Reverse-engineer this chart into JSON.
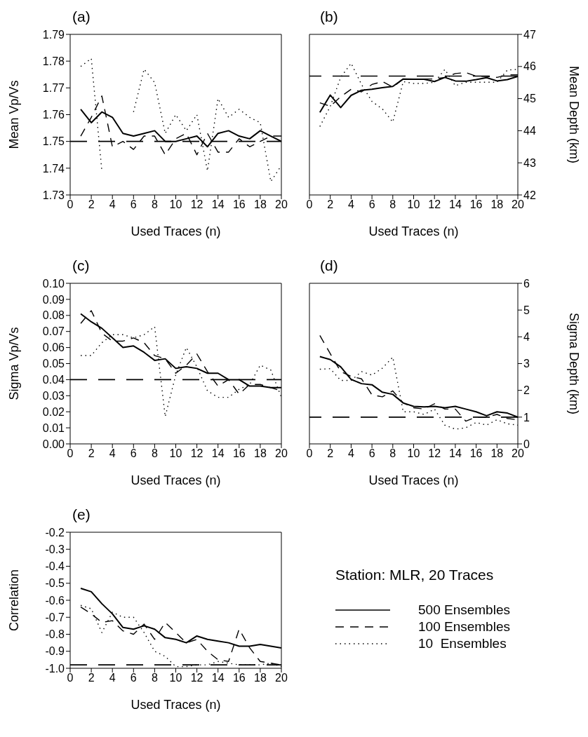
{
  "chart_data": [
    {
      "type": "line",
      "title": "(a)",
      "xlabel": "Used Traces (n)",
      "ylabel": "Mean Vp/Vs",
      "x": [
        1,
        2,
        3,
        4,
        5,
        6,
        7,
        8,
        9,
        10,
        11,
        12,
        13,
        14,
        15,
        16,
        17,
        18,
        19,
        20
      ],
      "xlim": [
        0,
        20
      ],
      "xticks": [
        0,
        2,
        4,
        6,
        8,
        10,
        12,
        14,
        16,
        18,
        20
      ],
      "ylim": [
        1.73,
        1.79
      ],
      "yticks": [
        1.73,
        1.74,
        1.75,
        1.76,
        1.77,
        1.78,
        1.79
      ],
      "series": [
        {
          "color": "#000000",
          "line_style": "solid",
          "values": [
            1.762,
            1.757,
            1.761,
            1.759,
            1.753,
            1.752,
            1.753,
            1.754,
            1.75,
            1.75,
            1.751,
            1.752,
            1.748,
            1.753,
            1.754,
            1.752,
            1.751,
            1.754,
            1.752,
            1.75
          ]
        },
        {
          "color": "#000000",
          "line_style": "dashed",
          "values": [
            1.752,
            1.759,
            1.767,
            1.748,
            1.75,
            1.747,
            1.752,
            1.752,
            1.745,
            1.751,
            1.753,
            1.745,
            1.753,
            1.746,
            1.746,
            1.751,
            1.748,
            1.75,
            1.752,
            1.752
          ]
        },
        {
          "color": "#000000",
          "line_style": "dotted",
          "values": [
            1.778,
            1.781,
            1.739,
            null,
            null,
            1.761,
            1.777,
            1.772,
            1.753,
            1.76,
            1.754,
            1.76,
            1.739,
            1.766,
            1.759,
            1.762,
            1.759,
            1.757,
            1.735,
            1.741
          ]
        }
      ],
      "ref_lines": [
        {
          "axis": "y",
          "value": 1.75,
          "color": "#000000",
          "line_style": "dashed"
        }
      ]
    },
    {
      "type": "line",
      "title": "(b)",
      "xlabel": "Used Traces (n)",
      "y2label": "Mean Depth (km)",
      "x": [
        1,
        2,
        3,
        4,
        5,
        6,
        7,
        8,
        9,
        10,
        11,
        12,
        13,
        14,
        15,
        16,
        17,
        18,
        19,
        20
      ],
      "xlim": [
        0,
        20
      ],
      "xticks": [
        0,
        2,
        4,
        6,
        8,
        10,
        12,
        14,
        16,
        18,
        20
      ],
      "y2lim": [
        42,
        47
      ],
      "y2ticks": [
        42,
        43,
        44,
        45,
        46,
        47
      ],
      "series": [
        {
          "color": "#000000",
          "line_style": "solid",
          "axis": "y2",
          "values": [
            44.57,
            45.11,
            44.72,
            45.1,
            45.26,
            45.29,
            45.34,
            45.38,
            45.61,
            45.6,
            45.6,
            45.53,
            45.66,
            45.55,
            45.54,
            45.59,
            45.65,
            45.55,
            45.59,
            45.69
          ]
        },
        {
          "color": "#000000",
          "line_style": "dashed",
          "axis": "y2",
          "values": [
            44.87,
            44.76,
            45.06,
            45.29,
            45.21,
            45.44,
            45.53,
            45.36,
            45.61,
            45.61,
            45.61,
            45.61,
            45.66,
            45.78,
            45.81,
            45.7,
            45.69,
            45.66,
            45.74,
            45.74
          ]
        },
        {
          "color": "#000000",
          "line_style": "dotted",
          "axis": "y2",
          "values": [
            44.13,
            44.76,
            45.66,
            46.1,
            45.44,
            44.91,
            44.68,
            44.27,
            45.53,
            45.47,
            45.47,
            45.51,
            45.91,
            45.4,
            45.51,
            45.51,
            45.51,
            45.51,
            45.89,
            45.91
          ]
        }
      ],
      "ref_lines": [
        {
          "axis": "y2",
          "value": 45.7,
          "color": "#000000",
          "line_style": "dashed"
        }
      ]
    },
    {
      "type": "line",
      "title": "(c)",
      "xlabel": "Used Traces (n)",
      "ylabel": "Sigma Vp/Vs",
      "x": [
        1,
        2,
        3,
        4,
        5,
        6,
        7,
        8,
        9,
        10,
        11,
        12,
        13,
        14,
        15,
        16,
        17,
        18,
        19,
        20
      ],
      "xlim": [
        0,
        20
      ],
      "xticks": [
        0,
        2,
        4,
        6,
        8,
        10,
        12,
        14,
        16,
        18,
        20
      ],
      "ylim": [
        0,
        0.1
      ],
      "yticks": [
        {
          "value": 0,
          "label": "0.00"
        },
        0.01,
        0.02,
        0.03,
        0.04,
        0.05,
        0.06,
        0.07,
        0.08,
        0.09,
        {
          "value": 0.1,
          "label": "0.10"
        }
      ],
      "series": [
        {
          "color": "#000000",
          "line_style": "solid",
          "values": [
            0.081,
            0.076,
            0.072,
            0.066,
            0.06,
            0.061,
            0.057,
            0.052,
            0.053,
            0.047,
            0.048,
            0.047,
            0.044,
            0.044,
            0.04,
            0.04,
            0.036,
            0.036,
            0.035,
            0.035
          ]
        },
        {
          "color": "#000000",
          "line_style": "dashed",
          "values": [
            0.075,
            0.083,
            0.069,
            0.064,
            0.064,
            0.066,
            0.063,
            0.055,
            0.053,
            0.044,
            0.049,
            0.056,
            0.045,
            0.036,
            0.04,
            0.031,
            0.037,
            0.037,
            0.035,
            0.033
          ]
        },
        {
          "color": "#000000",
          "line_style": "dotted",
          "values": [
            0.055,
            0.055,
            0.063,
            0.068,
            0.068,
            0.066,
            0.068,
            0.073,
            0.017,
            0.043,
            0.06,
            0.048,
            0.033,
            0.029,
            0.029,
            0.034,
            0.037,
            0.049,
            0.046,
            0.029
          ]
        }
      ],
      "ref_lines": [
        {
          "axis": "y",
          "value": 0.04,
          "color": "#000000",
          "line_style": "dashed"
        }
      ]
    },
    {
      "type": "line",
      "title": "(d)",
      "xlabel": "Used Traces (n)",
      "y2label": "Sigma Depth (km)",
      "x": [
        1,
        2,
        3,
        4,
        5,
        6,
        7,
        8,
        9,
        10,
        11,
        12,
        13,
        14,
        15,
        16,
        17,
        18,
        19,
        20
      ],
      "xlim": [
        0,
        20
      ],
      "xticks": [
        0,
        2,
        4,
        6,
        8,
        10,
        12,
        14,
        16,
        18,
        20
      ],
      "y2lim": [
        0,
        6
      ],
      "y2ticks": [
        0,
        1,
        2,
        3,
        4,
        5,
        6
      ],
      "series": [
        {
          "color": "#000000",
          "line_style": "solid",
          "axis": "y2",
          "values": [
            3.26,
            3.15,
            2.88,
            2.41,
            2.25,
            2.21,
            1.93,
            1.85,
            1.53,
            1.4,
            1.38,
            1.4,
            1.35,
            1.4,
            1.3,
            1.2,
            1.05,
            1.2,
            1.15,
            1.0
          ]
        },
        {
          "color": "#000000",
          "line_style": "dashed",
          "axis": "y2",
          "values": [
            4.05,
            3.37,
            2.7,
            2.52,
            2.43,
            1.83,
            1.76,
            1.98,
            1.53,
            1.35,
            1.3,
            1.5,
            1.3,
            1.3,
            0.85,
            1.0,
            1.0,
            1.1,
            0.95,
            0.9
          ]
        },
        {
          "color": "#000000",
          "line_style": "dotted",
          "axis": "y2",
          "values": [
            2.79,
            2.81,
            2.37,
            2.37,
            2.7,
            2.57,
            2.83,
            3.24,
            1.2,
            1.2,
            1.1,
            1.3,
            0.7,
            0.55,
            0.6,
            0.8,
            0.7,
            0.9,
            0.75,
            0.7
          ]
        }
      ],
      "ref_lines": [
        {
          "axis": "y2",
          "value": 1,
          "color": "#000000",
          "line_style": "dashed"
        }
      ]
    },
    {
      "type": "line",
      "title": "(e)",
      "xlabel": "Used Traces (n)",
      "ylabel": "Correlation",
      "legend": "right",
      "legend_title": "Station: MLR, 20 Traces",
      "x": [
        1,
        2,
        3,
        4,
        5,
        6,
        7,
        8,
        9,
        10,
        11,
        12,
        13,
        14,
        15,
        16,
        17,
        18,
        19,
        20
      ],
      "xlim": [
        0,
        20
      ],
      "xticks": [
        0,
        2,
        4,
        6,
        8,
        10,
        12,
        14,
        16,
        18,
        20
      ],
      "ylim": [
        -1,
        -0.2
      ],
      "yticks": [
        {
          "value": -1,
          "label": "-1.0"
        },
        -0.9,
        -0.8,
        -0.7,
        -0.6,
        -0.5,
        -0.4,
        -0.3,
        -0.2
      ],
      "series": [
        {
          "name": "500 Ensembles",
          "color": "#000000",
          "line_style": "solid",
          "values": [
            -0.53,
            -0.55,
            -0.62,
            -0.68,
            -0.76,
            -0.77,
            -0.75,
            -0.77,
            -0.82,
            -0.83,
            -0.85,
            -0.81,
            -0.83,
            -0.84,
            -0.85,
            -0.87,
            -0.87,
            -0.86,
            -0.87,
            -0.88
          ]
        },
        {
          "name": "100 Ensembles",
          "color": "#000000",
          "line_style": "dashed",
          "values": [
            -0.64,
            -0.68,
            -0.73,
            -0.72,
            -0.78,
            -0.8,
            -0.74,
            -0.83,
            -0.73,
            -0.79,
            -0.85,
            -0.83,
            -0.9,
            -0.95,
            -0.96,
            -0.77,
            -0.88,
            -0.96,
            -0.97,
            -0.98
          ]
        },
        {
          "name": "10  Ensembles",
          "color": "#000000",
          "line_style": "dotted",
          "values": [
            -0.63,
            -0.65,
            -0.79,
            -0.67,
            -0.7,
            -0.7,
            -0.79,
            -0.9,
            -0.93,
            -0.99,
            -0.99,
            -0.98,
            -0.98,
            -0.96,
            -0.97,
            -0.98,
            -0.98,
            -0.98,
            -0.97,
            -0.99
          ]
        }
      ],
      "ref_lines": [
        {
          "axis": "y",
          "value": -0.98,
          "color": "#000000",
          "line_style": "dashed"
        }
      ]
    }
  ]
}
